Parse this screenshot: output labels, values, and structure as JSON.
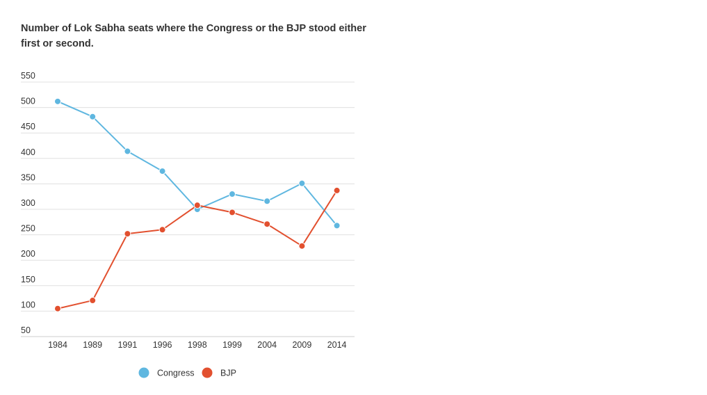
{
  "chart_data": {
    "type": "line",
    "title": "Number of Lok Sabha seats where the Congress or the BJP stood either first or second.",
    "xlabel": "",
    "ylabel": "",
    "categories": [
      "1984",
      "1989",
      "1991",
      "1996",
      "1998",
      "1999",
      "2004",
      "2009",
      "2014"
    ],
    "ylim": [
      50,
      550
    ],
    "yticks": [
      50,
      100,
      150,
      200,
      250,
      300,
      350,
      400,
      450,
      500,
      550
    ],
    "grid": true,
    "legend_position": "bottom",
    "series": [
      {
        "name": "Congress",
        "color": "#5fb7e0",
        "values": [
          512,
          482,
          414,
          375,
          300,
          330,
          316,
          351,
          268
        ]
      },
      {
        "name": "BJP",
        "color": "#e2502f",
        "values": [
          105,
          121,
          252,
          260,
          308,
          294,
          271,
          228,
          337
        ]
      }
    ]
  }
}
